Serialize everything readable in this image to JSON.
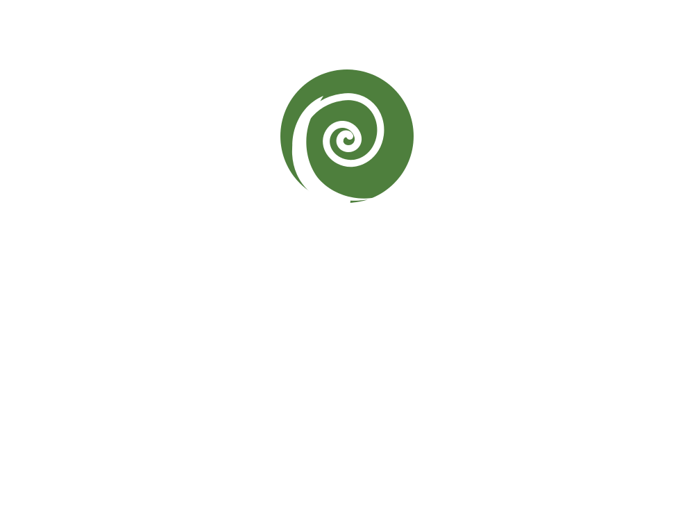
{
  "logo": {
    "icon": "spiral-logo-icon",
    "colors": {
      "primary": "#4e7f3d",
      "background": "#ffffff"
    }
  }
}
